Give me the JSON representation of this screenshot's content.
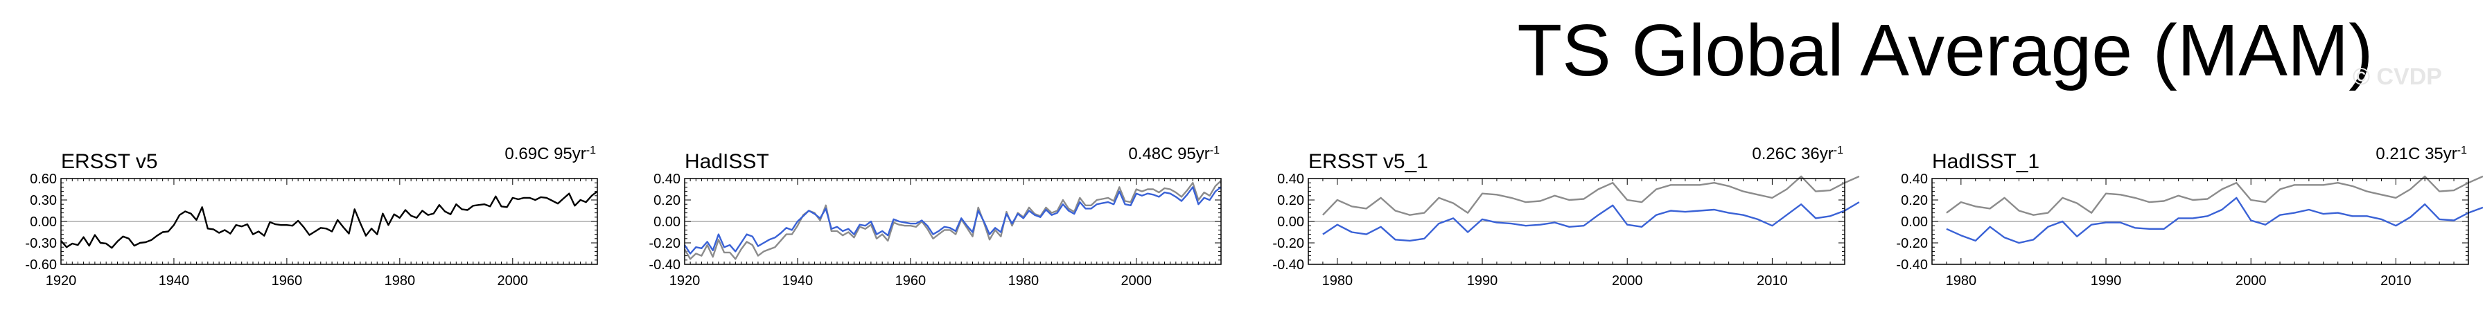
{
  "title": "TS Global Average (MAM)",
  "watermark": "© CVDP",
  "colors": {
    "obs_primary": "#000000",
    "obs_secondary": "#3a62d6",
    "reference": "#8c8c8c",
    "zero_line": "#9a9a9a"
  },
  "chart_data": [
    {
      "type": "line",
      "title": "ERSST v5",
      "trend_label": "0.69C 95yr",
      "trend_exponent": "-1",
      "xlim": [
        1920,
        2015
      ],
      "ylim": [
        -0.6,
        0.6
      ],
      "xticks": [
        "1920",
        "1940",
        "1960",
        "1980",
        "2000"
      ],
      "yticks": [
        "0.60",
        "0.30",
        "0.00",
        "-0.30",
        "-0.60"
      ],
      "x_start": 1920,
      "series": [
        {
          "values": [
            -0.27,
            -0.36,
            -0.31,
            -0.33,
            -0.22,
            -0.34,
            -0.19,
            -0.3,
            -0.31,
            -0.37,
            -0.28,
            -0.21,
            -0.24,
            -0.34,
            -0.3,
            -0.29,
            -0.26,
            -0.2,
            -0.15,
            -0.14,
            -0.05,
            0.09,
            0.14,
            0.11,
            0.02,
            0.2,
            -0.1,
            -0.11,
            -0.16,
            -0.12,
            -0.17,
            -0.05,
            -0.07,
            -0.04,
            -0.18,
            -0.14,
            -0.2,
            -0.01,
            -0.04,
            -0.05,
            -0.05,
            -0.06,
            0.01,
            -0.08,
            -0.19,
            -0.14,
            -0.09,
            -0.1,
            -0.14,
            0.02,
            -0.08,
            -0.17,
            0.17,
            -0.02,
            -0.2,
            -0.1,
            -0.18,
            0.11,
            -0.05,
            0.1,
            0.05,
            0.16,
            0.08,
            0.05,
            0.15,
            0.09,
            0.11,
            0.23,
            0.14,
            0.1,
            0.24,
            0.17,
            0.16,
            0.22,
            0.23,
            0.24,
            0.21,
            0.35,
            0.21,
            0.2,
            0.33,
            0.31,
            0.33,
            0.33,
            0.3,
            0.34,
            0.33,
            0.29,
            0.25,
            0.32,
            0.39,
            0.22,
            0.3,
            0.27,
            0.36,
            0.42
          ]
        }
      ]
    },
    {
      "type": "line",
      "title": "HadISST",
      "trend_label": "0.48C 95yr",
      "trend_exponent": "-1",
      "xlim": [
        1920,
        2015
      ],
      "ylim": [
        -0.4,
        0.4
      ],
      "xticks": [
        "1920",
        "1940",
        "1960",
        "1980",
        "2000"
      ],
      "yticks": [
        "0.40",
        "0.20",
        "0.00",
        "-0.20",
        "-0.40"
      ],
      "x_start": 1920,
      "series": [
        {
          "values": [
            -0.22,
            -0.3,
            -0.24,
            -0.25,
            -0.19,
            -0.27,
            -0.12,
            -0.24,
            -0.22,
            -0.28,
            -0.2,
            -0.12,
            -0.14,
            -0.23,
            -0.2,
            -0.17,
            -0.15,
            -0.11,
            -0.06,
            -0.08,
            0.0,
            0.05,
            0.1,
            0.07,
            0.03,
            0.12,
            -0.07,
            -0.05,
            -0.09,
            -0.07,
            -0.12,
            -0.03,
            -0.04,
            0.0,
            -0.12,
            -0.09,
            -0.13,
            0.02,
            0.0,
            -0.01,
            -0.02,
            -0.02,
            0.01,
            -0.04,
            -0.12,
            -0.09,
            -0.05,
            -0.06,
            -0.09,
            0.03,
            -0.04,
            -0.1,
            0.1,
            0.0,
            -0.12,
            -0.06,
            -0.1,
            0.07,
            -0.02,
            0.07,
            0.03,
            0.1,
            0.06,
            0.04,
            0.11,
            0.06,
            0.08,
            0.16,
            0.1,
            0.07,
            0.18,
            0.12,
            0.12,
            0.16,
            0.17,
            0.18,
            0.16,
            0.28,
            0.16,
            0.15,
            0.26,
            0.24,
            0.26,
            0.25,
            0.23,
            0.27,
            0.26,
            0.23,
            0.19,
            0.25,
            0.32,
            0.16,
            0.22,
            0.2,
            0.28,
            0.32
          ]
        },
        {
          "values": [
            -0.26,
            -0.35,
            -0.3,
            -0.32,
            -0.22,
            -0.33,
            -0.17,
            -0.29,
            -0.29,
            -0.35,
            -0.26,
            -0.19,
            -0.22,
            -0.32,
            -0.28,
            -0.26,
            -0.24,
            -0.18,
            -0.12,
            -0.12,
            -0.04,
            0.06,
            0.1,
            0.08,
            0.01,
            0.15,
            -0.09,
            -0.09,
            -0.13,
            -0.1,
            -0.15,
            -0.05,
            -0.07,
            -0.03,
            -0.16,
            -0.12,
            -0.18,
            -0.01,
            -0.03,
            -0.04,
            -0.04,
            -0.05,
            0.0,
            -0.07,
            -0.16,
            -0.12,
            -0.08,
            -0.08,
            -0.12,
            0.02,
            -0.06,
            -0.14,
            0.13,
            -0.01,
            -0.17,
            -0.08,
            -0.14,
            0.09,
            -0.04,
            0.08,
            0.04,
            0.13,
            0.07,
            0.05,
            0.13,
            0.08,
            0.1,
            0.2,
            0.12,
            0.09,
            0.22,
            0.15,
            0.15,
            0.2,
            0.21,
            0.22,
            0.19,
            0.32,
            0.19,
            0.18,
            0.3,
            0.28,
            0.3,
            0.3,
            0.27,
            0.31,
            0.3,
            0.27,
            0.23,
            0.29,
            0.36,
            0.2,
            0.27,
            0.24,
            0.33,
            0.38
          ]
        }
      ]
    },
    {
      "type": "line",
      "title": "ERSST v5_1",
      "trend_label": "0.26C 36yr",
      "trend_exponent": "-1",
      "xlim": [
        1978,
        2015
      ],
      "ylim": [
        -0.4,
        0.4
      ],
      "xticks": [
        "1980",
        "1990",
        "2000",
        "2010"
      ],
      "yticks": [
        "0.40",
        "0.20",
        "0.00",
        "-0.20",
        "-0.40"
      ],
      "x_start": 1979,
      "series": [
        {
          "values": [
            -0.12,
            -0.03,
            -0.1,
            -0.12,
            -0.05,
            -0.17,
            -0.18,
            -0.16,
            -0.02,
            0.03,
            -0.1,
            0.02,
            -0.01,
            -0.02,
            -0.04,
            -0.03,
            -0.01,
            -0.05,
            -0.04,
            0.06,
            0.15,
            -0.03,
            -0.05,
            0.06,
            0.1,
            0.09,
            0.1,
            0.11,
            0.08,
            0.06,
            0.02,
            -0.04,
            0.06,
            0.16,
            0.03,
            0.05,
            0.1,
            0.18
          ]
        },
        {
          "values": [
            0.06,
            0.2,
            0.14,
            0.12,
            0.22,
            0.1,
            0.06,
            0.08,
            0.22,
            0.17,
            0.08,
            0.26,
            0.25,
            0.22,
            0.18,
            0.19,
            0.24,
            0.2,
            0.21,
            0.3,
            0.36,
            0.2,
            0.18,
            0.3,
            0.34,
            0.34,
            0.34,
            0.36,
            0.33,
            0.28,
            0.25,
            0.22,
            0.3,
            0.42,
            0.28,
            0.29,
            0.36,
            0.42
          ]
        }
      ]
    },
    {
      "type": "line",
      "title": "HadISST_1",
      "trend_label": "0.21C 35yr",
      "trend_exponent": "-1",
      "xlim": [
        1978,
        2015
      ],
      "ylim": [
        -0.4,
        0.4
      ],
      "xticks": [
        "1980",
        "1990",
        "2000",
        "2010"
      ],
      "yticks": [
        "0.40",
        "0.20",
        "0.00",
        "-0.20",
        "-0.40"
      ],
      "x_start": 1979,
      "series": [
        {
          "values": [
            -0.07,
            -0.13,
            -0.18,
            -0.05,
            -0.15,
            -0.2,
            -0.17,
            -0.05,
            0.0,
            -0.14,
            -0.03,
            -0.01,
            -0.01,
            -0.06,
            -0.07,
            -0.07,
            0.03,
            0.03,
            0.05,
            0.11,
            0.22,
            0.01,
            -0.03,
            0.06,
            0.08,
            0.11,
            0.07,
            0.08,
            0.05,
            0.05,
            0.02,
            -0.04,
            0.04,
            0.16,
            0.02,
            0.01,
            0.08,
            0.13
          ]
        },
        {
          "values": [
            0.08,
            0.18,
            0.14,
            0.12,
            0.22,
            0.1,
            0.06,
            0.08,
            0.22,
            0.17,
            0.08,
            0.26,
            0.25,
            0.22,
            0.18,
            0.19,
            0.24,
            0.2,
            0.21,
            0.3,
            0.36,
            0.2,
            0.18,
            0.3,
            0.34,
            0.34,
            0.34,
            0.36,
            0.33,
            0.28,
            0.25,
            0.22,
            0.3,
            0.42,
            0.28,
            0.29,
            0.36,
            0.42
          ]
        }
      ]
    }
  ]
}
